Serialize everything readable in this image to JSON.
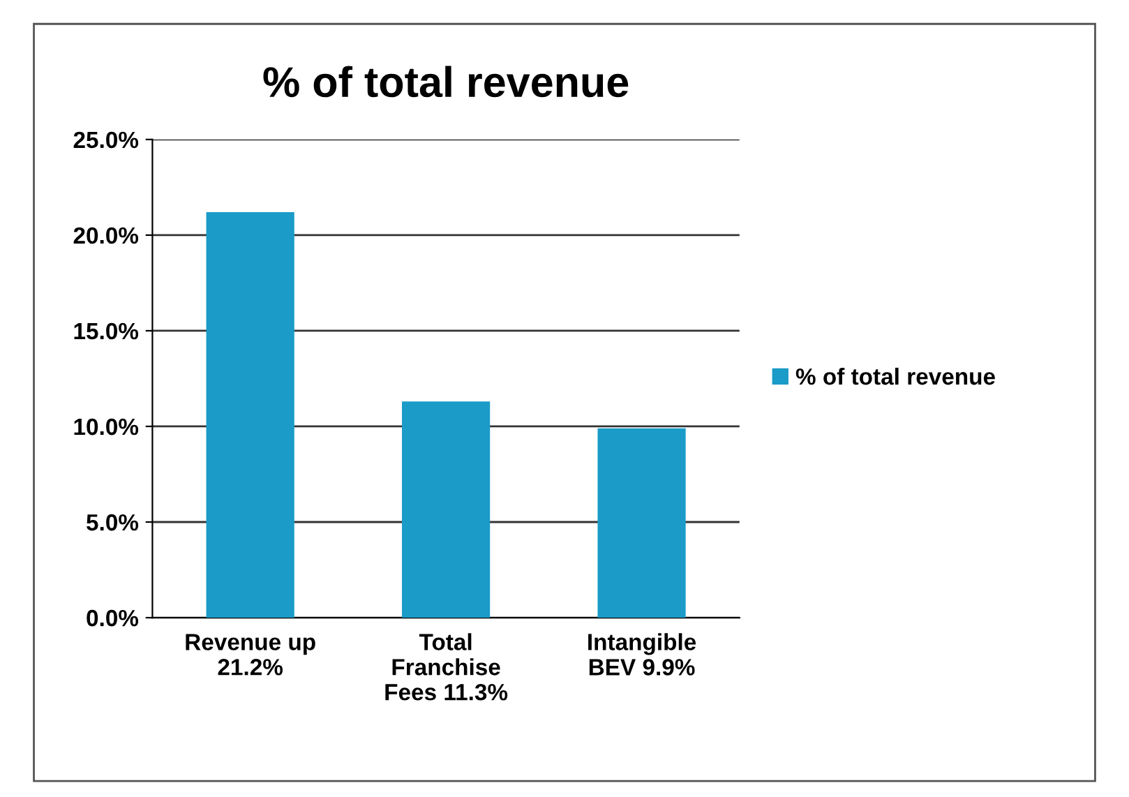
{
  "chart_data": {
    "type": "bar",
    "title": "% of total revenue",
    "categories": [
      "Revenue up\n21.2%",
      "Total\nFranchise\nFees 11.3%",
      "Intangible\nBEV 9.9%"
    ],
    "series": [
      {
        "name": "% of total revenue",
        "color": "#1a9bc8",
        "values": [
          21.2,
          11.3,
          9.9
        ]
      }
    ],
    "ylim": [
      0,
      25
    ],
    "yticks": [
      {
        "value": 0,
        "label": "0.0%"
      },
      {
        "value": 5,
        "label": "5.0%"
      },
      {
        "value": 10,
        "label": "10.0%"
      },
      {
        "value": 15,
        "label": "15.0%"
      },
      {
        "value": 20,
        "label": "20.0%"
      },
      {
        "value": 25,
        "label": "25.0%"
      }
    ],
    "grid": "y",
    "legend": "right"
  }
}
